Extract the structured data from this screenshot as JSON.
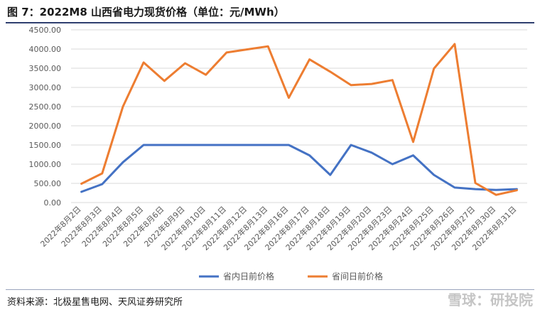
{
  "title": "图 7：2022M8 山西省电力现货价格（单位：元/MWh）",
  "source": "资料来源：北极星售电网、天风证券研究所",
  "watermark": "雪球：研投院",
  "colors": {
    "blue": "#4472c4",
    "orange": "#ed7d31",
    "grid": "#d9d9d9",
    "text": "#595959"
  },
  "chart_data": {
    "type": "line",
    "categories": [
      "2022年8月2日",
      "2022年8月3日",
      "2022年8月4日",
      "2022年8月5日",
      "2022年8月6日",
      "2022年8月9日",
      "2022年8月10日",
      "2022年8月11日",
      "2022年8月12日",
      "2022年8月13日",
      "2022年8月16日",
      "2022年8月17日",
      "2022年8月18日",
      "2022年8月19日",
      "2022年8月20日",
      "2022年8月23日",
      "2022年8月24日",
      "2022年8月25日",
      "2022年8月26日",
      "2022年8月27日",
      "2022年8月30日",
      "2022年8月31日"
    ],
    "y_ticks": [
      "0.00",
      "500.00",
      "1000.00",
      "1500.00",
      "2000.00",
      "2500.00",
      "3000.00",
      "3500.00",
      "4000.00",
      "4500.00"
    ],
    "ylim": [
      0,
      4500
    ],
    "series": [
      {
        "name": "省内日前价格",
        "color": "#4472c4",
        "values": [
          280,
          480,
          1050,
          1500,
          1500,
          1500,
          1500,
          1500,
          1500,
          1500,
          1500,
          1230,
          720,
          1500,
          1300,
          1000,
          1230,
          720,
          390,
          350,
          330,
          350
        ]
      },
      {
        "name": "省间日前价格",
        "color": "#ed7d31",
        "values": [
          490,
          760,
          2500,
          3650,
          3170,
          3630,
          3330,
          3910,
          3990,
          4070,
          2730,
          3730,
          3410,
          3060,
          3090,
          3190,
          1580,
          3490,
          4130,
          510,
          200,
          320
        ]
      }
    ],
    "legend_position": "bottom",
    "grid": true
  }
}
